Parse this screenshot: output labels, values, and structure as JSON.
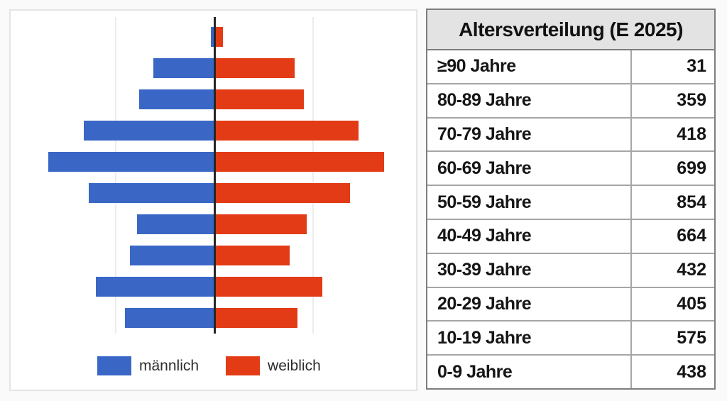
{
  "table": {
    "title": "Altersverteilung (E 2025)",
    "rows": [
      {
        "label": "≥90 Jahre",
        "value": "31"
      },
      {
        "label": "80-89 Jahre",
        "value": "359"
      },
      {
        "label": "70-79 Jahre",
        "value": "418"
      },
      {
        "label": "60-69 Jahre",
        "value": "699"
      },
      {
        "label": "50-59 Jahre",
        "value": "854"
      },
      {
        "label": "40-49 Jahre",
        "value": "664"
      },
      {
        "label": "30-39 Jahre",
        "value": "432"
      },
      {
        "label": "20-29 Jahre",
        "value": "405"
      },
      {
        "label": "10-19 Jahre",
        "value": "575"
      },
      {
        "label": "0-9 Jahre",
        "value": "438"
      }
    ]
  },
  "chart_data": {
    "type": "bar",
    "subtype": "population_pyramid",
    "orientation": "horizontal",
    "categories": [
      "≥90 Jahre",
      "80-89 Jahre",
      "70-79 Jahre",
      "60-69 Jahre",
      "50-59 Jahre",
      "40-49 Jahre",
      "30-39 Jahre",
      "20-29 Jahre",
      "10-19 Jahre",
      "0-9 Jahre"
    ],
    "series": [
      {
        "name": "männlich",
        "side": "left",
        "color": "#3a67c6",
        "values": [
          9,
          155,
          191,
          332,
          422,
          320,
          197,
          214,
          301,
          227
        ]
      },
      {
        "name": "weiblich",
        "side": "right",
        "color": "#e23b16",
        "values": [
          22,
          204,
          227,
          367,
          432,
          344,
          235,
          191,
          274,
          211
        ]
      }
    ],
    "totals": [
      31,
      359,
      418,
      699,
      854,
      664,
      432,
      405,
      575,
      438
    ],
    "xlim": [
      -451,
      451
    ],
    "gridline_values": [
      -250,
      250
    ],
    "axis_color": "#262626",
    "grid_color": "#ececec",
    "legend_position": "bottom"
  }
}
